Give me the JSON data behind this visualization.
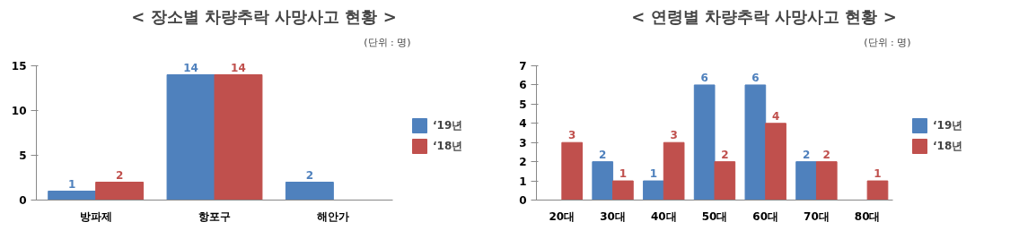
{
  "chart_data": [
    {
      "type": "bar",
      "title": "< 장소별 차량추락 사망사고 현황 >",
      "subtitle": "(단위 : 명)",
      "categories": [
        "방파제",
        "항포구",
        "해안가"
      ],
      "series": [
        {
          "name": "‘19년",
          "color": "#4f81bd",
          "values": [
            1,
            14,
            2
          ]
        },
        {
          "name": "‘18년",
          "color": "#c0504d",
          "values": [
            2,
            14,
            null
          ]
        }
      ],
      "ylim": [
        0,
        15
      ],
      "yticks": [
        0,
        5,
        10,
        15
      ],
      "grid": false,
      "legend": "right",
      "data_labels": true
    },
    {
      "type": "bar",
      "title": "< 연령별 차량추락 사망사고 현황 >",
      "subtitle": "(단위 : 명)",
      "categories": [
        "20대",
        "30대",
        "40대",
        "50대",
        "60대",
        "70대",
        "80대"
      ],
      "series": [
        {
          "name": "‘19년",
          "color": "#4f81bd",
          "values": [
            null,
            2,
            1,
            6,
            6,
            2,
            null
          ]
        },
        {
          "name": "‘18년",
          "color": "#c0504d",
          "values": [
            3,
            1,
            3,
            2,
            4,
            2,
            1
          ]
        }
      ],
      "ylim": [
        0,
        7
      ],
      "yticks": [
        0,
        1,
        2,
        3,
        4,
        5,
        6,
        7
      ],
      "grid": false,
      "legend": "right",
      "data_labels": true
    }
  ]
}
